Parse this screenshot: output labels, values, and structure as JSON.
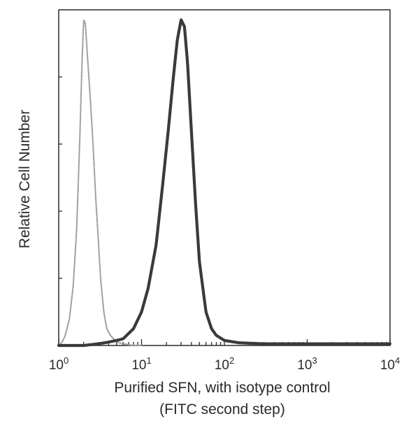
{
  "chart_data": {
    "type": "line",
    "xscale": "log",
    "xlim": [
      1,
      10000
    ],
    "ylim": [
      0,
      100
    ],
    "ylabel": "Relative Cell Number",
    "xlabel": "Purified SFN, with isotype control",
    "xlabel_line2": "(FITC second step)",
    "x_ticks": [
      {
        "base": "10",
        "exp": "0",
        "value": 1
      },
      {
        "base": "10",
        "exp": "1",
        "value": 10
      },
      {
        "base": "10",
        "exp": "2",
        "value": 100
      },
      {
        "base": "10",
        "exp": "3",
        "value": 1000
      },
      {
        "base": "10",
        "exp": "4",
        "value": 10000
      }
    ],
    "grid": false,
    "legend": "none",
    "series": [
      {
        "style": "dotted",
        "color": "#9a9a9a",
        "x": [
          1.0,
          1.1,
          1.2,
          1.35,
          1.5,
          1.65,
          1.8,
          1.9,
          2.0,
          2.1,
          2.2,
          2.4,
          2.6,
          2.8,
          3.0,
          3.2,
          3.5,
          3.8,
          4.2,
          4.6,
          5.0,
          6.0,
          8.0,
          10.0
        ],
        "y": [
          0,
          1,
          3,
          8,
          18,
          35,
          62,
          82,
          97,
          96,
          88,
          74,
          60,
          44,
          32,
          20,
          10,
          5,
          3,
          2,
          1,
          0.5,
          0,
          0
        ]
      },
      {
        "style": "solid",
        "color": "#3a3a3a",
        "x": [
          1.0,
          2.0,
          3.0,
          4.0,
          5.0,
          6.0,
          8.0,
          10.0,
          12.0,
          15.0,
          18.0,
          21.0,
          24.0,
          27.0,
          30.0,
          33.0,
          36.0,
          40.0,
          45.0,
          50.0,
          60.0,
          70.0,
          80.0,
          100.0,
          150.0,
          300.0,
          1000.0,
          10000.0
        ],
        "y": [
          0,
          0,
          0.5,
          1,
          1.5,
          2,
          5,
          10,
          17,
          30,
          48,
          64,
          79,
          91,
          97,
          95,
          84,
          64,
          42,
          25,
          10,
          5,
          3,
          1.5,
          0.8,
          0.5,
          0.5,
          0.5
        ]
      }
    ]
  }
}
